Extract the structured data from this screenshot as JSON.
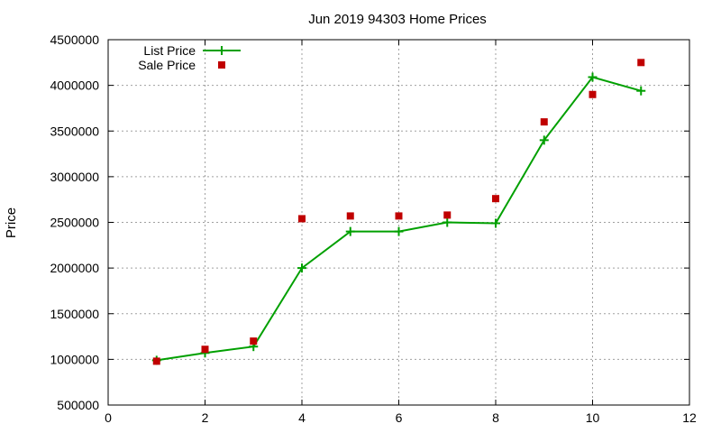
{
  "chart_data": {
    "type": "line",
    "title": "Jun 2019 94303 Home Prices",
    "xlabel": "",
    "ylabel": "Price",
    "xlim": [
      0,
      12
    ],
    "ylim": [
      500000,
      4500000
    ],
    "x_ticks": [
      "0",
      "2",
      "4",
      "6",
      "8",
      "10",
      "12"
    ],
    "y_ticks": [
      "500000",
      "1000000",
      "1500000",
      "2000000",
      "2500000",
      "3000000",
      "3500000",
      "4000000",
      "4500000"
    ],
    "grid": true,
    "legend_position": "top-left",
    "series": [
      {
        "name": "List Price",
        "style": "line-with-plus-markers",
        "color": "#00a000",
        "x": [
          1,
          2,
          3,
          4,
          5,
          6,
          7,
          8,
          9,
          10,
          11
        ],
        "y": [
          990000,
          1070000,
          1140000,
          2000000,
          2400000,
          2400000,
          2500000,
          2490000,
          3400000,
          4090000,
          3940000
        ]
      },
      {
        "name": "Sale Price",
        "style": "square-points",
        "color": "#c00000",
        "x": [
          1,
          2,
          3,
          4,
          5,
          6,
          7,
          8,
          9,
          10,
          11
        ],
        "y": [
          980000,
          1110000,
          1200000,
          2540000,
          2570000,
          2570000,
          2580000,
          2760000,
          3600000,
          3900000,
          4250000
        ]
      }
    ]
  }
}
